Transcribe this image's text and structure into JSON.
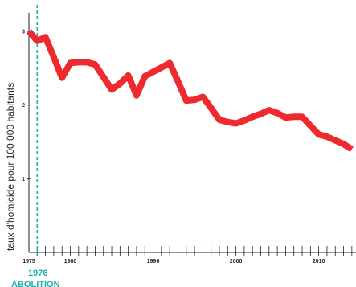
{
  "chart_data": {
    "type": "line",
    "title": "",
    "xlabel": "",
    "ylabel": "taux d'homicide pour 100 000 habitants",
    "xlim": [
      1975,
      2014
    ],
    "ylim": [
      0,
      3.2
    ],
    "x_ticks": [
      1975,
      1980,
      1990,
      2000,
      2010
    ],
    "y_ticks": [
      1,
      2,
      3
    ],
    "grid": false,
    "series": [
      {
        "name": "",
        "color": "#ee2a2f",
        "x": [
          1975,
          1976,
          1977,
          1978,
          1979,
          1980,
          1981,
          1982,
          1983,
          1984,
          1985,
          1986,
          1987,
          1988,
          1989,
          1990,
          1991,
          1992,
          1993,
          1994,
          1995,
          1996,
          1997,
          1998,
          1999,
          2000,
          2001,
          2002,
          2003,
          2004,
          2005,
          2006,
          2007,
          2008,
          2009,
          2010,
          2011,
          2012,
          2013,
          2014
        ],
        "y": [
          3.0,
          2.87,
          2.92,
          2.65,
          2.37,
          2.57,
          2.58,
          2.58,
          2.55,
          2.38,
          2.21,
          2.29,
          2.4,
          2.13,
          2.39,
          2.45,
          2.51,
          2.57,
          2.32,
          2.06,
          2.07,
          2.11,
          1.96,
          1.8,
          1.77,
          1.75,
          1.79,
          1.84,
          1.88,
          1.93,
          1.89,
          1.83,
          1.84,
          1.84,
          1.72,
          1.6,
          1.57,
          1.52,
          1.47,
          1.4
        ]
      }
    ],
    "annotations": [
      {
        "x": 1976,
        "line1": "1976",
        "line2": "ABOLITION",
        "color": "#18b3ad",
        "style": "dashed-vertical"
      }
    ]
  }
}
